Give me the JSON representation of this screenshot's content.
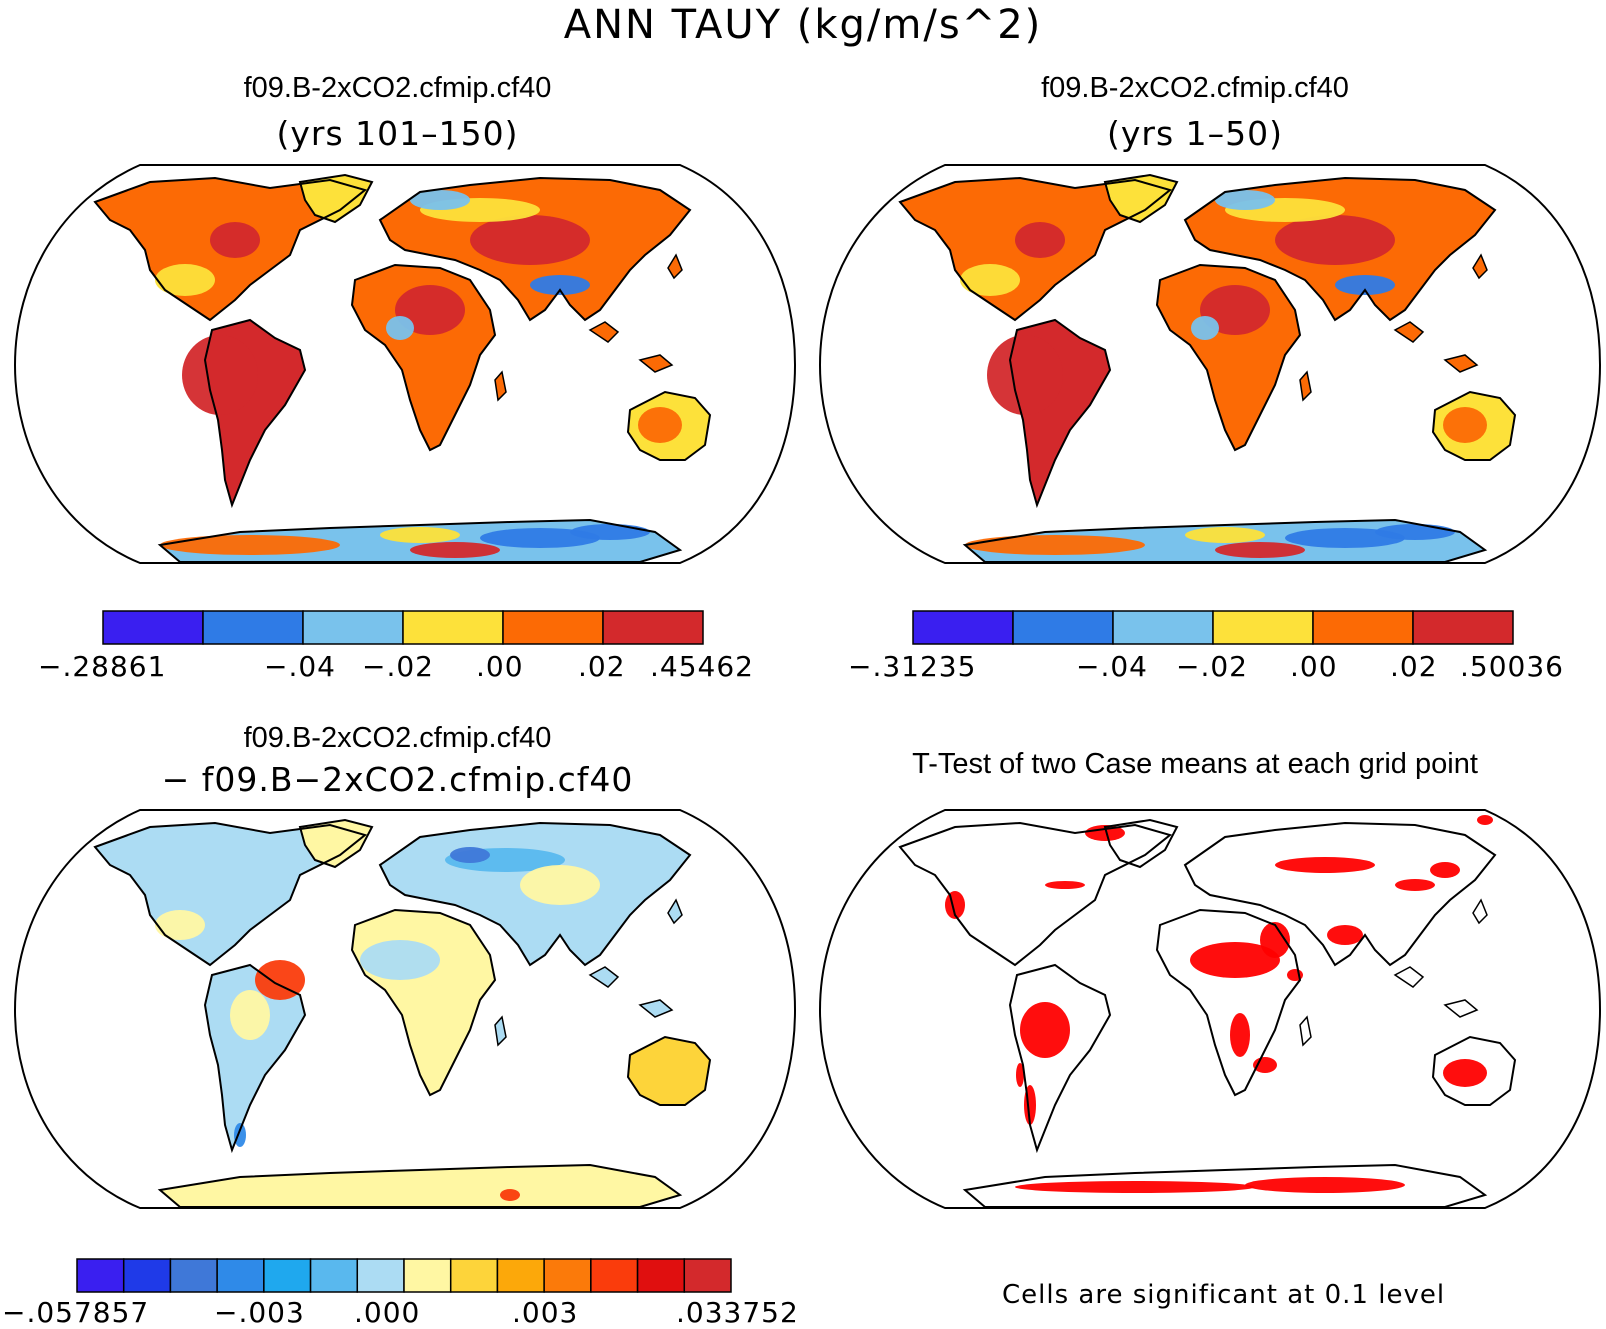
{
  "title": "ANN TAUY (kg/m/s^2)",
  "panels": {
    "top_left": {
      "title": "f09.B-2xCO2.cfmip.cf40",
      "subtitle": "(yrs 101–150)",
      "colorbar": {
        "colors": [
          "#3a1ff0",
          "#2f7be6",
          "#79c2ec",
          "#fde13a",
          "#fc6a05",
          "#d3292c"
        ],
        "labels": [
          "−.28861",
          "−.04",
          "−.02",
          ".00",
          ".02",
          ".45462"
        ]
      }
    },
    "top_right": {
      "title": "f09.B-2xCO2.cfmip.cf40",
      "subtitle": "(yrs 1–50)",
      "colorbar": {
        "colors": [
          "#3a1ff0",
          "#2f7be6",
          "#79c2ec",
          "#fde13a",
          "#fc6a05",
          "#d3292c"
        ],
        "labels": [
          "−.31235",
          "−.04",
          "−.02",
          ".00",
          ".02",
          ".50036"
        ]
      }
    },
    "bottom_left": {
      "title": "f09.B-2xCO2.cfmip.cf40",
      "subtitle": "− f09.B−2xCO2.cfmip.cf40",
      "colorbar": {
        "colors": [
          "#3a1ff0",
          "#1f3ae8",
          "#3f78d8",
          "#2f8ae8",
          "#1fa8ee",
          "#59b8ee",
          "#acdcf3",
          "#fff7a3",
          "#fdd43a",
          "#fca80a",
          "#fb7a0a",
          "#fa3c0c",
          "#e00f0f",
          "#d3292c"
        ],
        "labels": [
          "−.057857",
          "−.003",
          ".000",
          ".003",
          ".033752"
        ]
      }
    },
    "bottom_right": {
      "title": "T-Test of two Case means at each grid point",
      "footnote": "Cells are significant at 0.1 level",
      "significance_color": "#ff0000"
    }
  },
  "colors": {
    "land_warm": "#fc6a05",
    "land_hot": "#d3292c",
    "land_yellow": "#fde13a",
    "land_lightblue": "#79c2ec",
    "land_blue": "#2f7be6",
    "ocean": "#ffffff",
    "coast": "#000000"
  }
}
